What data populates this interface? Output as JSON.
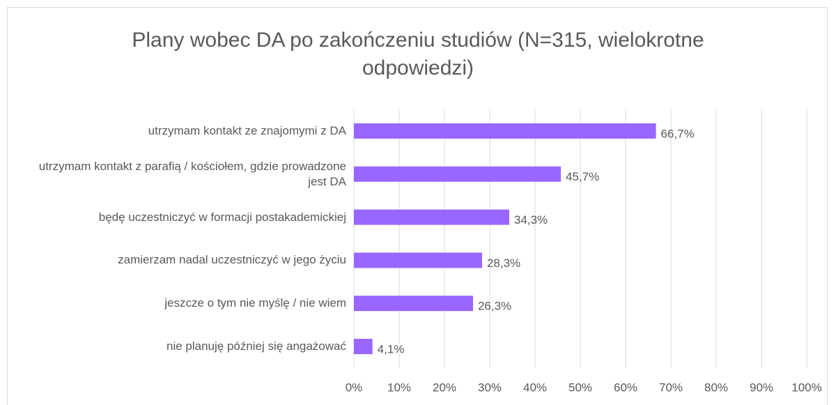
{
  "chart_data": {
    "type": "bar",
    "orientation": "horizontal",
    "title": "Plany wobec DA po zakończeniu studiów (N=315, wielokrotne odpowiedzi)",
    "categories": [
      "utrzymam kontakt ze znajomymi z DA",
      "utrzymam kontakt z parafią / kościołem, gdzie prowadzone jest DA",
      "będę uczestniczyć w formacji postakademickiej",
      "zamierzam nadal uczestniczyć w jego życiu",
      "jeszcze o tym nie myślę / nie wiem",
      "nie planuję później się angażować"
    ],
    "values": [
      66.7,
      45.7,
      34.3,
      28.3,
      26.3,
      4.1
    ],
    "value_labels": [
      "66,7%",
      "45,7%",
      "34,3%",
      "28,3%",
      "26,3%",
      "4,1%"
    ],
    "color": "#9966ff",
    "xlim": [
      0,
      100
    ],
    "xticks": [
      {
        "value": 0,
        "label": "0%"
      },
      {
        "value": 10,
        "label": "10%"
      },
      {
        "value": 20,
        "label": "20%"
      },
      {
        "value": 30,
        "label": "30%"
      },
      {
        "value": 40,
        "label": "40%"
      },
      {
        "value": 50,
        "label": "50%"
      },
      {
        "value": 60,
        "label": "60%"
      },
      {
        "value": 70,
        "label": "70%"
      },
      {
        "value": 80,
        "label": "80%"
      },
      {
        "value": 90,
        "label": "90%"
      },
      {
        "value": 100,
        "label": "100%"
      }
    ],
    "grid": true
  }
}
